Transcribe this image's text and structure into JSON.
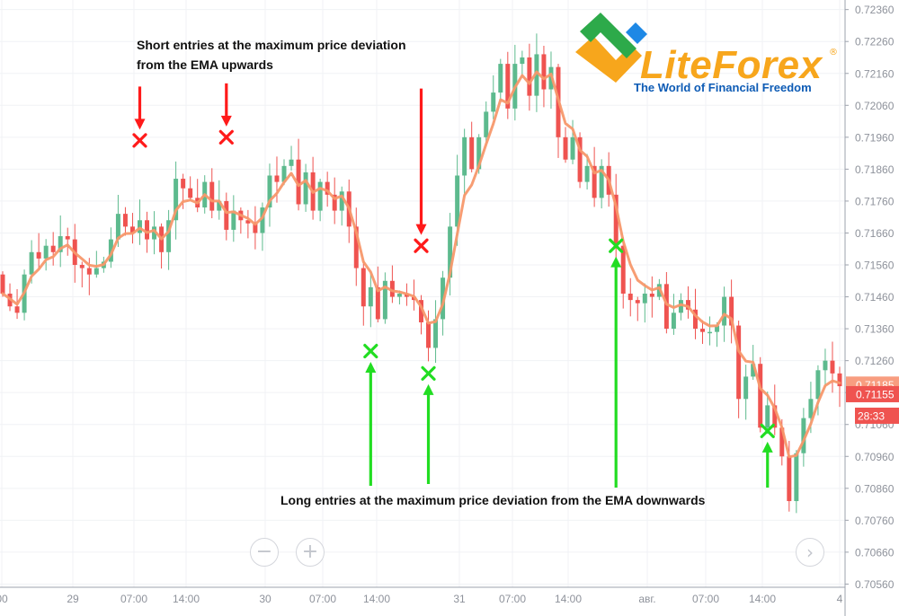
{
  "chart_data": {
    "type": "candlestick",
    "title": "",
    "xlabel": "",
    "ylabel": "",
    "ylim": [
      0.7055,
      0.7239
    ],
    "grid": true,
    "x_tick_labels": [
      "00",
      "29",
      "07:00",
      "14:00",
      "30",
      "07:00",
      "14:00",
      "31",
      "07:00",
      "14:00",
      "авг.",
      "07:00",
      "14:00",
      "4"
    ],
    "y_tick_labels": [
      "0.72360",
      "0.72260",
      "0.72160",
      "0.72060",
      "0.71960",
      "0.71860",
      "0.71760",
      "0.71660",
      "0.71560",
      "0.71460",
      "0.71360",
      "0.71260",
      "0.71160",
      "0.71060",
      "0.70960",
      "0.70860",
      "0.70760",
      "0.70660",
      "0.70560"
    ],
    "price_labels": [
      {
        "label": "0.71185",
        "value": 0.71185,
        "color": "#f89d80"
      },
      {
        "label": "0.71155",
        "value": 0.71155,
        "color": "#ef5350"
      }
    ],
    "countdown_label": "28:33",
    "candles": [
      0.7147,
      0.7143,
      0.7141,
      0.7153,
      0.716,
      0.7158,
      0.7162,
      0.716,
      0.7165,
      0.7164,
      0.7156,
      0.7155,
      0.7153,
      0.7155,
      0.7157,
      0.7164,
      0.7172,
      0.7168,
      0.7166,
      0.717,
      0.7164,
      0.7168,
      0.716,
      0.717,
      0.7183,
      0.718,
      0.7177,
      0.7174,
      0.7182,
      0.7173,
      0.7176,
      0.7167,
      0.7173,
      0.717,
      0.7169,
      0.7166,
      0.7174,
      0.7184,
      0.7182,
      0.7187,
      0.7189,
      0.7175,
      0.7185,
      0.7173,
      0.7182,
      0.7178,
      0.7173,
      0.7179,
      0.7168,
      0.7155,
      0.7143,
      0.7149,
      0.7139,
      0.7151,
      0.7146,
      0.7147,
      0.7146,
      0.7145,
      0.7138,
      0.713,
      0.7139,
      0.7152,
      0.7168,
      0.7184,
      0.7196,
      0.7186,
      0.7196,
      0.7204,
      0.721,
      0.7219,
      0.7205,
      0.7219,
      0.7221,
      0.7209,
      0.7222,
      0.7211,
      0.7218,
      0.7196,
      0.7189,
      0.7196,
      0.7182,
      0.7187,
      0.7177,
      0.7187,
      0.7178,
      0.7162,
      0.7147,
      0.7145,
      0.7144,
      0.7147,
      0.7146,
      0.715,
      0.7136,
      0.7141,
      0.7145,
      0.7142,
      0.7136,
      0.7135,
      0.7135,
      0.7137,
      0.7146,
      0.7137,
      0.7114,
      0.7121,
      0.7125,
      0.7105,
      0.7112,
      0.7105,
      0.7096,
      0.7082,
      0.7097,
      0.7108,
      0.7114,
      0.7123,
      0.7126,
      0.7122,
      0.7118
    ],
    "ema_visible": true,
    "annotations": [
      "Short entries at the maximum price deviation",
      "from the EMA upwards",
      "Long entries at the maximum price deviation from the EMA downwards"
    ],
    "short_entries": [
      {
        "x_index": 19,
        "price": 0.7195
      },
      {
        "x_index": 31,
        "price": 0.7196
      },
      {
        "x_index": 58,
        "price": 0.7162
      }
    ],
    "long_entries": [
      {
        "x_index": 51,
        "price": 0.7129
      },
      {
        "x_index": 59,
        "price": 0.7122
      },
      {
        "x_index": 85,
        "price": 0.7162
      },
      {
        "x_index": 106,
        "price": 0.7104
      }
    ]
  },
  "brand": {
    "name": "LiteForex",
    "registered": "®",
    "tagline": "The World of Financial Freedom"
  },
  "controls": {
    "zoom_out": "−",
    "zoom_in": "+",
    "scroll_right": "›"
  },
  "colors": {
    "up": "#5dba8e",
    "down": "#ef5350",
    "ema": "#f7986c",
    "short_marker": "#ff1a1a",
    "long_marker": "#22dd22",
    "brand_orange": "#f7a61c",
    "brand_green": "#2daa4a",
    "brand_blue": "#0d5bb5"
  }
}
